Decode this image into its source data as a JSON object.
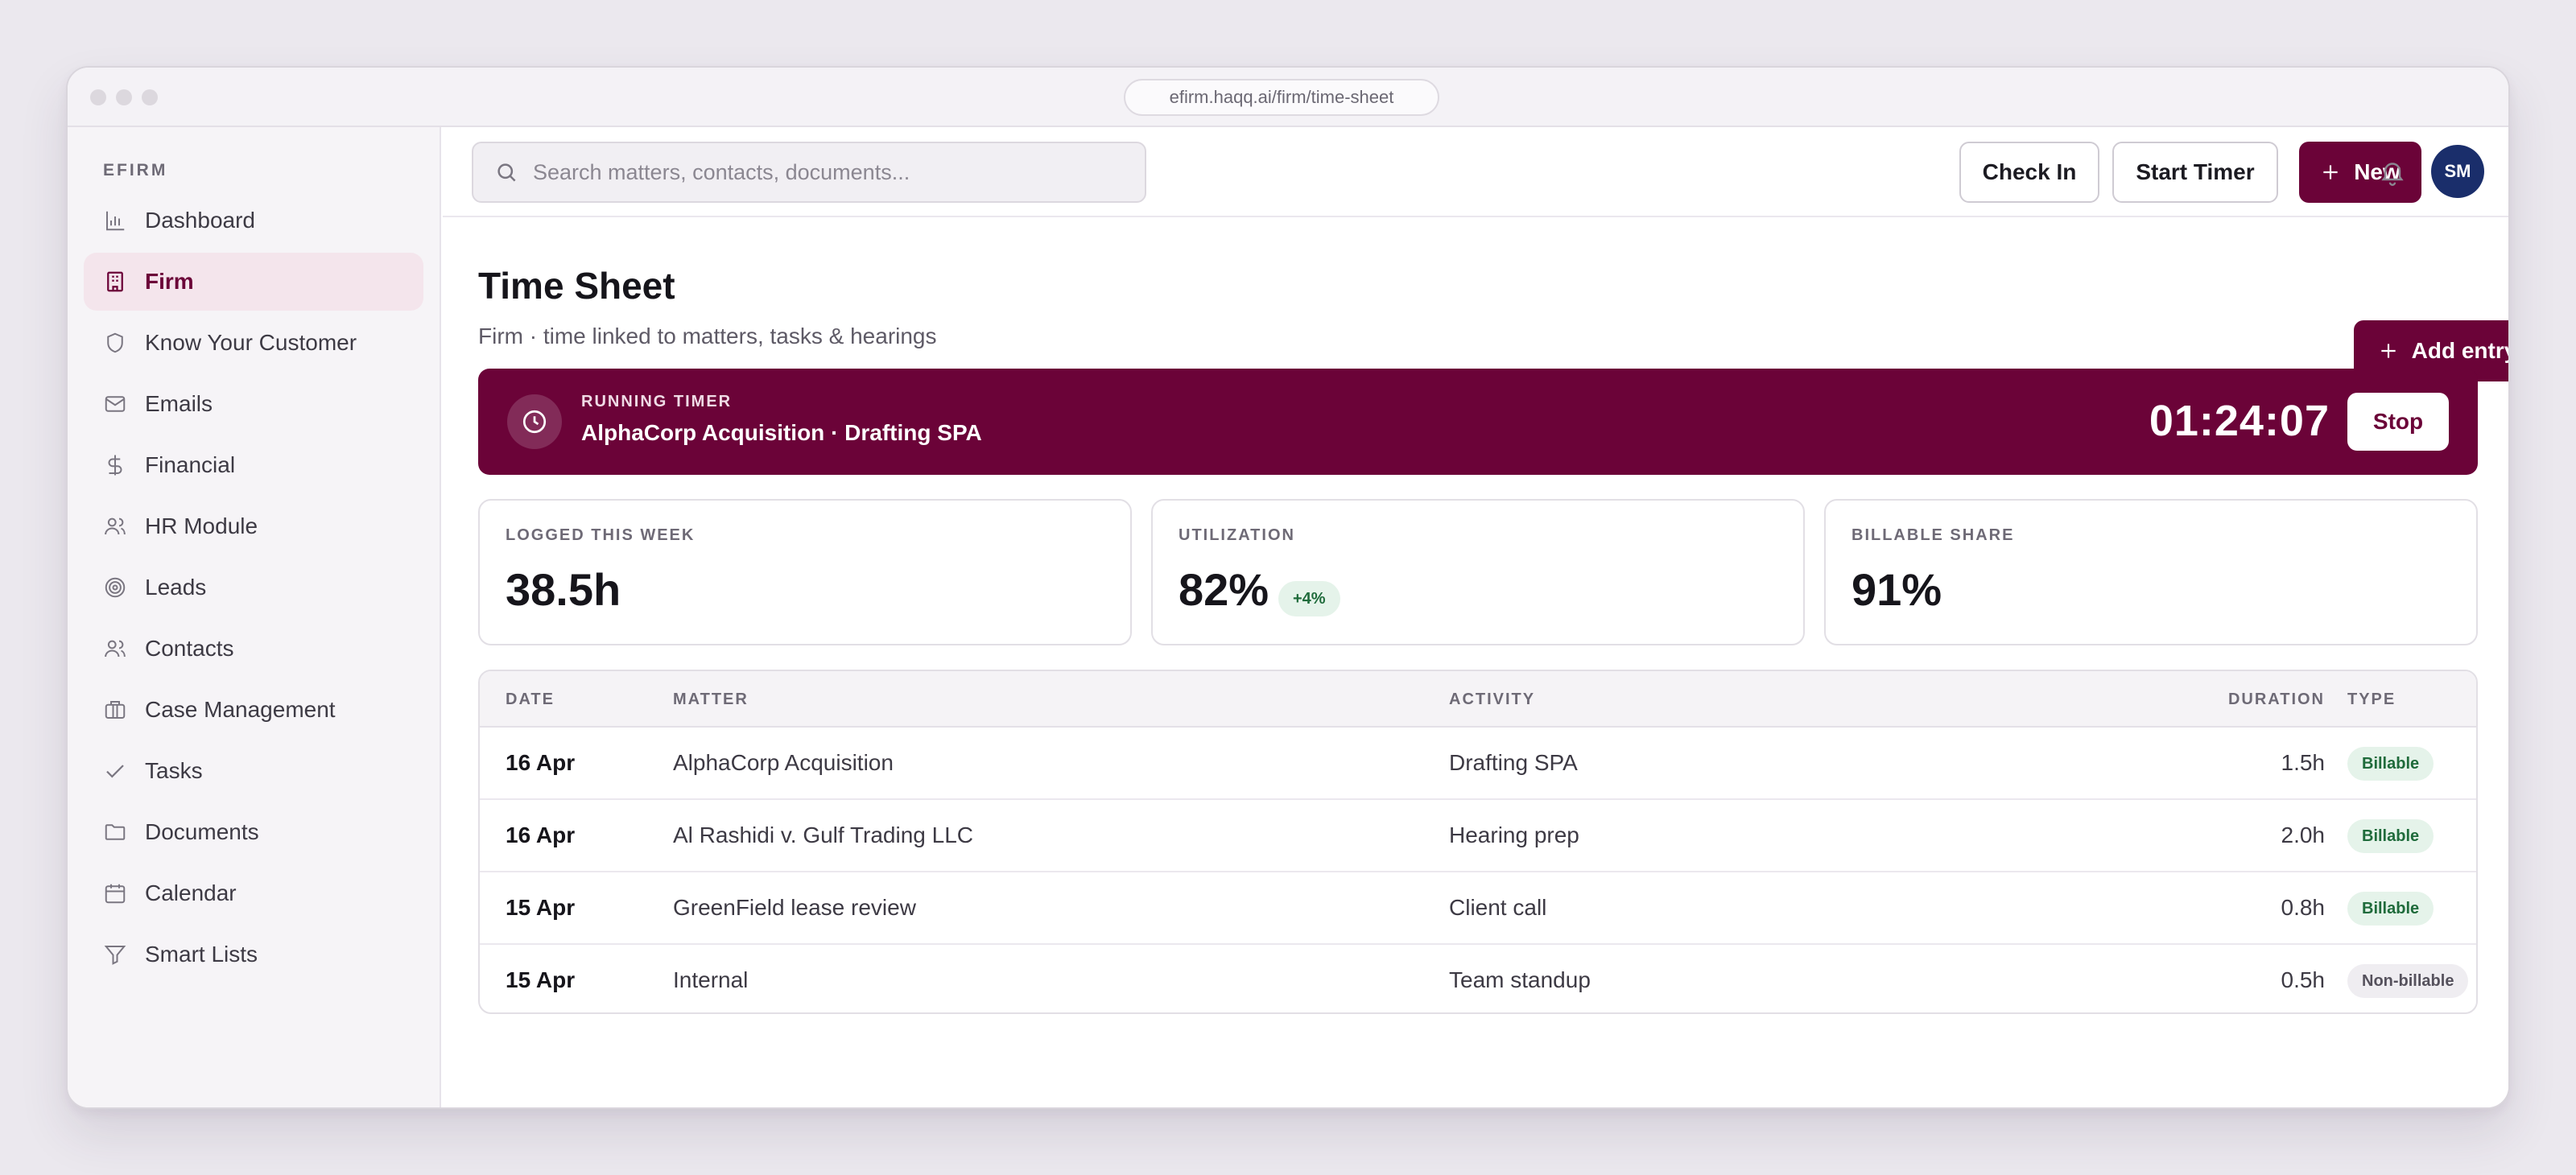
{
  "browser": {
    "url": "efirm.haqq.ai/firm/time-sheet"
  },
  "sidebar": {
    "brand": "EFIRM",
    "items": [
      {
        "label": "Dashboard",
        "icon": "bar-chart-icon",
        "active": false
      },
      {
        "label": "Firm",
        "icon": "building-icon",
        "active": true
      },
      {
        "label": "Know Your Customer",
        "icon": "shield-icon",
        "active": false
      },
      {
        "label": "Emails",
        "icon": "mail-icon",
        "active": false
      },
      {
        "label": "Financial",
        "icon": "dollar-icon",
        "active": false
      },
      {
        "label": "HR Module",
        "icon": "users-icon",
        "active": false
      },
      {
        "label": "Leads",
        "icon": "target-icon",
        "active": false
      },
      {
        "label": "Contacts",
        "icon": "contacts-icon",
        "active": false
      },
      {
        "label": "Case Management",
        "icon": "briefcase-icon",
        "active": false
      },
      {
        "label": "Tasks",
        "icon": "check-icon",
        "active": false
      },
      {
        "label": "Documents",
        "icon": "folder-icon",
        "active": false
      },
      {
        "label": "Calendar",
        "icon": "calendar-icon",
        "active": false
      },
      {
        "label": "Smart Lists",
        "icon": "filter-icon",
        "active": false
      }
    ]
  },
  "topbar": {
    "search_placeholder": "Search matters, contacts, documents...",
    "check_in_label": "Check In",
    "start_timer_label": "Start Timer",
    "new_label": "New",
    "avatar_initials": "SM"
  },
  "page": {
    "title": "Time Sheet",
    "subtitle": "Firm · time linked to matters, tasks & hearings",
    "add_entry_label": "Add entry"
  },
  "timer": {
    "label": "RUNNING TIMER",
    "title": "AlphaCorp Acquisition · Drafting SPA",
    "elapsed": "01:24:07",
    "stop_label": "Stop"
  },
  "stats": [
    {
      "label": "LOGGED THIS WEEK",
      "value": "38.5h"
    },
    {
      "label": "UTILIZATION",
      "value": "82%",
      "delta": "+4%"
    },
    {
      "label": "BILLABLE SHARE",
      "value": "91%"
    }
  ],
  "table": {
    "headers": {
      "date": "DATE",
      "matter": "MATTER",
      "activity": "ACTIVITY",
      "duration": "DURATION",
      "type": "TYPE"
    },
    "rows": [
      {
        "date": "16 Apr",
        "matter": "AlphaCorp Acquisition",
        "activity": "Drafting SPA",
        "duration": "1.5h",
        "type": "Billable"
      },
      {
        "date": "16 Apr",
        "matter": "Al Rashidi v. Gulf Trading LLC",
        "activity": "Hearing prep",
        "duration": "2.0h",
        "type": "Billable"
      },
      {
        "date": "15 Apr",
        "matter": "GreenField lease review",
        "activity": "Client call",
        "duration": "0.8h",
        "type": "Billable"
      },
      {
        "date": "15 Apr",
        "matter": "Internal",
        "activity": "Team standup",
        "duration": "0.5h",
        "type": "Non-billable"
      }
    ]
  },
  "colors": {
    "brand": "#6b0338",
    "active_nav_bg": "#f4e5ec",
    "billable_badge": "#e5f3ea",
    "avatar": "#1a2e6b"
  }
}
